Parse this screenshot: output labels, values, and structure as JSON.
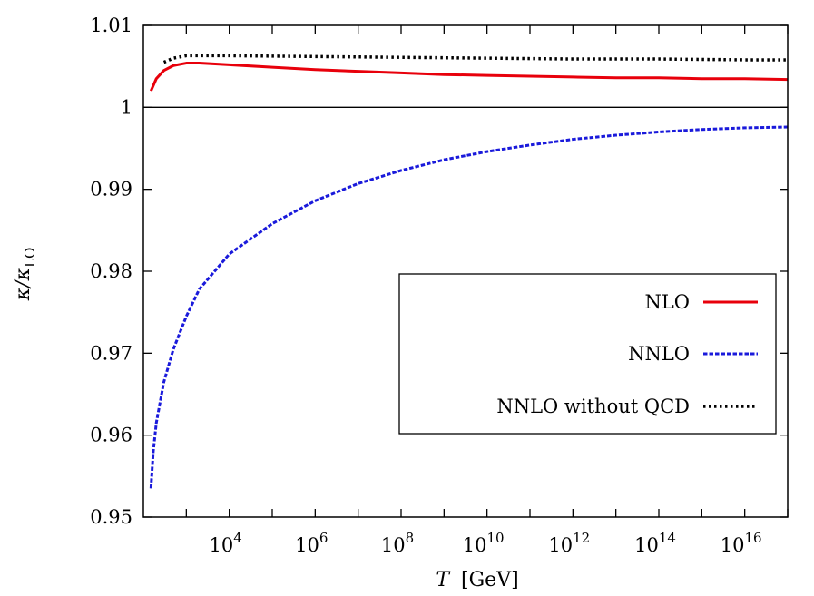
{
  "chart_data": {
    "type": "line",
    "xlabel": {
      "italic_var": "T",
      "unit": "[GeV]"
    },
    "ylabel": {
      "main": "κ/κ",
      "subscript": "LO"
    },
    "x_scale": "log10",
    "xlim": [
      100,
      1e+17
    ],
    "ylim": [
      0.95,
      1.01
    ],
    "x_ticks": [
      {
        "base": "10",
        "exp": "4",
        "value": 10000.0
      },
      {
        "base": "10",
        "exp": "6",
        "value": 1000000.0
      },
      {
        "base": "10",
        "exp": "8",
        "value": 100000000.0
      },
      {
        "base": "10",
        "exp": "10",
        "value": 10000000000.0
      },
      {
        "base": "10",
        "exp": "12",
        "value": 1000000000000.0
      },
      {
        "base": "10",
        "exp": "14",
        "value": 100000000000000.0
      },
      {
        "base": "10",
        "exp": "16",
        "value": 1e+16
      }
    ],
    "y_ticks": [
      {
        "label": "0.95",
        "value": 0.95
      },
      {
        "label": "0.96",
        "value": 0.96
      },
      {
        "label": "0.97",
        "value": 0.97
      },
      {
        "label": "0.98",
        "value": 0.98
      },
      {
        "label": "0.99",
        "value": 0.99
      },
      {
        "label": "1",
        "value": 1.0
      },
      {
        "label": "1.01",
        "value": 1.01
      }
    ],
    "reference_line": {
      "y": 1.0
    },
    "legend_position": "center-right",
    "series": [
      {
        "name": "NLO",
        "color": "#e8000b",
        "style": "solid",
        "points": [
          [
            150,
            1.002
          ],
          [
            200,
            1.0035
          ],
          [
            300,
            1.0045
          ],
          [
            500,
            1.0051
          ],
          [
            1000,
            1.0054
          ],
          [
            2000,
            1.0054
          ],
          [
            10000.0,
            1.0052
          ],
          [
            100000.0,
            1.0049
          ],
          [
            1000000.0,
            1.0046
          ],
          [
            10000000.0,
            1.0044
          ],
          [
            100000000.0,
            1.0042
          ],
          [
            1000000000.0,
            1.004
          ],
          [
            10000000000.0,
            1.0039
          ],
          [
            100000000000.0,
            1.0038
          ],
          [
            1000000000000.0,
            1.0037
          ],
          [
            10000000000000.0,
            1.0036
          ],
          [
            100000000000000.0,
            1.0036
          ],
          [
            1000000000000000.0,
            1.0035
          ],
          [
            1e+16,
            1.0035
          ],
          [
            1e+17,
            1.0034
          ]
        ]
      },
      {
        "name": "NNLO",
        "color": "#1a1adb",
        "style": "dashed",
        "points": [
          [
            150,
            0.9535
          ],
          [
            170,
            0.958
          ],
          [
            200,
            0.9615
          ],
          [
            300,
            0.9665
          ],
          [
            500,
            0.9705
          ],
          [
            1000,
            0.9745
          ],
          [
            2000,
            0.9778
          ],
          [
            10000.0,
            0.9821
          ],
          [
            100000.0,
            0.9858
          ],
          [
            1000000.0,
            0.9886
          ],
          [
            10000000.0,
            0.9907
          ],
          [
            100000000.0,
            0.9923
          ],
          [
            1000000000.0,
            0.9936
          ],
          [
            10000000000.0,
            0.9946
          ],
          [
            100000000000.0,
            0.9954
          ],
          [
            1000000000000.0,
            0.9961
          ],
          [
            10000000000000.0,
            0.9966
          ],
          [
            100000000000000.0,
            0.997
          ],
          [
            1000000000000000.0,
            0.9973
          ],
          [
            1e+16,
            0.9975
          ],
          [
            1e+17,
            0.9976
          ]
        ]
      },
      {
        "name": "NNLO without QCD",
        "color": "#000000",
        "style": "dotted",
        "points": [
          [
            300,
            1.0055
          ],
          [
            500,
            1.006
          ],
          [
            1000,
            1.0063
          ],
          [
            10000.0,
            1.0063
          ],
          [
            1000000.0,
            1.0062
          ],
          [
            100000000.0,
            1.0061
          ],
          [
            10000000000.0,
            1.006
          ],
          [
            1000000000000.0,
            1.0059
          ],
          [
            100000000000000.0,
            1.0059
          ],
          [
            1e+16,
            1.0058
          ],
          [
            1e+17,
            1.0058
          ]
        ]
      }
    ]
  }
}
